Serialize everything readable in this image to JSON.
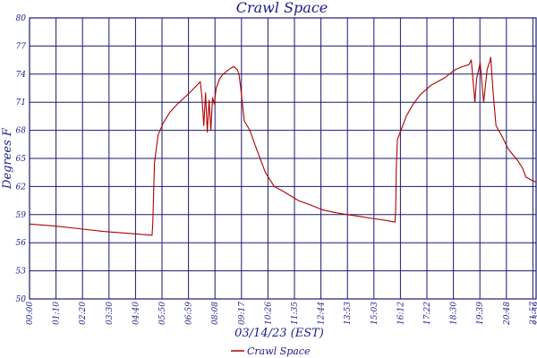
{
  "chart_data": {
    "type": "line",
    "title": "Crawl Space",
    "xlabel": "03/14/23 (EST)",
    "ylabel": "Degrees F",
    "ylim": [
      50,
      80
    ],
    "xlim": [
      "00:00",
      "23:59"
    ],
    "grid": true,
    "legend": "bottom-center",
    "y_ticks": [
      "50",
      "53",
      "56",
      "59",
      "62",
      "65",
      "68",
      "71",
      "74",
      "77",
      "80"
    ],
    "x_ticks": [
      "00:00",
      "01:10",
      "02:20",
      "03:30",
      "04:40",
      "05:50",
      "06:59",
      "08:08",
      "09:17",
      "10:26",
      "11:35",
      "12:44",
      "13:53",
      "15:03",
      "16:12",
      "17:22",
      "18:30",
      "19:39",
      "20:48",
      "21:57",
      "23:06",
      "23:59"
    ],
    "series": [
      {
        "name": "Crawl Space",
        "color": "#b00000",
        "x": [
          "00:00",
          "01:10",
          "02:20",
          "03:30",
          "04:40",
          "05:48",
          "05:50",
          "05:55",
          "06:05",
          "06:20",
          "06:40",
          "07:00",
          "07:20",
          "07:40",
          "07:55",
          "08:05",
          "08:10",
          "08:15",
          "08:20",
          "08:25",
          "08:30",
          "08:35",
          "08:40",
          "08:45",
          "08:50",
          "08:55",
          "09:00",
          "09:10",
          "09:20",
          "09:30",
          "09:40",
          "09:50",
          "09:55",
          "10:00",
          "10:10",
          "10:26",
          "10:40",
          "10:55",
          "11:10",
          "11:35",
          "12:00",
          "12:44",
          "13:20",
          "13:53",
          "14:30",
          "15:03",
          "15:40",
          "16:12",
          "16:50",
          "17:18",
          "17:20",
          "17:22",
          "17:25",
          "17:35",
          "17:50",
          "18:10",
          "18:30",
          "19:00",
          "19:39",
          "20:10",
          "20:30",
          "20:48",
          "20:55",
          "21:05",
          "21:10",
          "21:20",
          "21:30",
          "21:40",
          "21:47",
          "21:50",
          "21:57",
          "22:05",
          "22:20",
          "22:40",
          "23:06",
          "23:20",
          "23:30",
          "23:40",
          "23:50",
          "23:59"
        ],
        "y": [
          58.0,
          57.8,
          57.5,
          57.2,
          57.0,
          56.8,
          58.0,
          64.5,
          67.5,
          68.8,
          70.0,
          70.8,
          71.5,
          72.2,
          72.8,
          73.2,
          71.5,
          68.5,
          72.0,
          67.8,
          71.2,
          68.0,
          71.5,
          70.8,
          72.5,
          73.0,
          73.5,
          74.0,
          74.3,
          74.6,
          74.8,
          74.5,
          74.0,
          72.5,
          69.0,
          68.0,
          66.5,
          65.0,
          63.5,
          62.0,
          61.5,
          60.5,
          60.0,
          59.5,
          59.2,
          59.0,
          58.8,
          58.6,
          58.4,
          58.2,
          59.5,
          64.0,
          67.0,
          68.0,
          69.5,
          70.8,
          71.8,
          72.8,
          73.6,
          74.5,
          74.8,
          75.0,
          75.5,
          71.0,
          73.5,
          75.2,
          71.0,
          74.5,
          75.3,
          75.8,
          72.0,
          68.5,
          67.5,
          66.0,
          64.8,
          64.0,
          63.0,
          62.8,
          62.6,
          62.5
        ]
      }
    ]
  }
}
